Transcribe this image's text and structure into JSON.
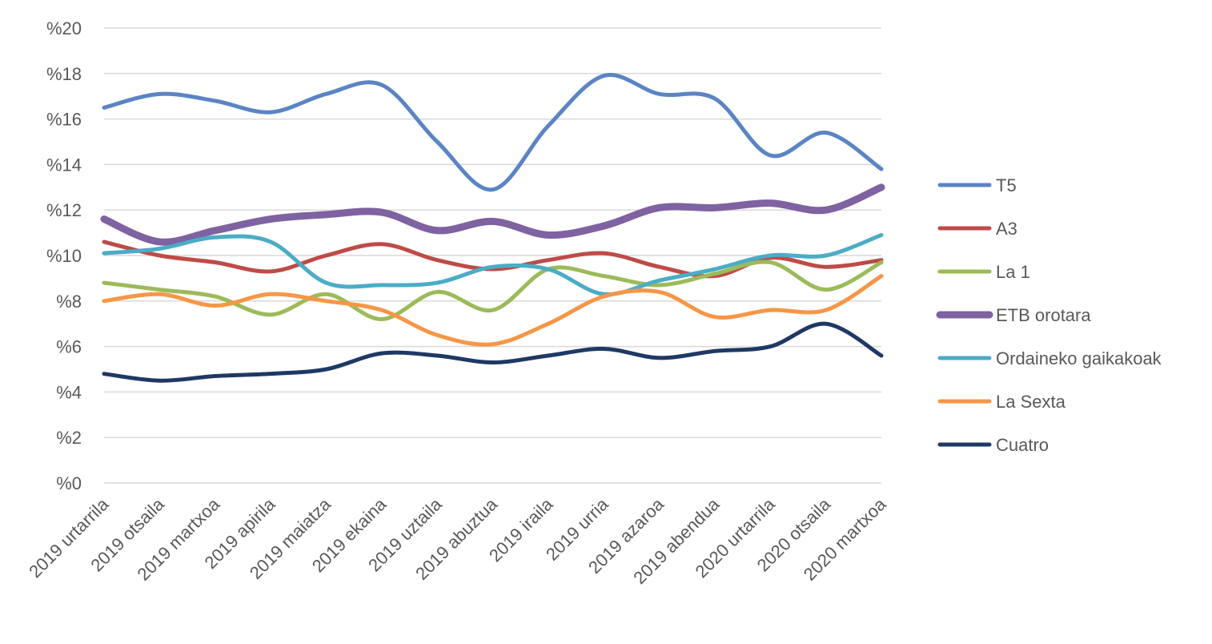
{
  "chart_data": {
    "type": "line",
    "title": "",
    "xlabel": "",
    "ylabel": "",
    "ylim": [
      0,
      20
    ],
    "y_tick_step": 2,
    "y_tick_prefix": "%",
    "grid": true,
    "legend_position": "right",
    "smooth": true,
    "categories": [
      "2019 urtarrila",
      "2019 otsaila",
      "2019 martxoa",
      "2019 apirila",
      "2019 maiatza",
      "2019 ekaina",
      "2019 uztaila",
      "2019 abuztua",
      "2019 iraila",
      "2019 urria",
      "2019 azaroa",
      "2019 abendua",
      "2020 urtarrila",
      "2020 otsaila",
      "2020 martxoa"
    ],
    "series": [
      {
        "name": "T5",
        "color": "#5B84C4",
        "width": 5,
        "values": [
          16.5,
          17.1,
          16.8,
          16.3,
          17.1,
          17.5,
          15.0,
          12.9,
          15.7,
          17.9,
          17.1,
          16.9,
          14.4,
          15.4,
          13.8
        ]
      },
      {
        "name": "A3",
        "color": "#BE4B48",
        "width": 5,
        "values": [
          10.6,
          10.0,
          9.7,
          9.3,
          10.0,
          10.5,
          9.8,
          9.4,
          9.8,
          10.1,
          9.5,
          9.1,
          9.9,
          9.5,
          9.8
        ]
      },
      {
        "name": "La 1",
        "color": "#9BBB59",
        "width": 5,
        "values": [
          8.8,
          8.5,
          8.2,
          7.4,
          8.3,
          7.2,
          8.4,
          7.6,
          9.4,
          9.1,
          8.7,
          9.2,
          9.7,
          8.5,
          9.7
        ]
      },
      {
        "name": "ETB orotara",
        "color": "#7F62A1",
        "width": 9,
        "values": [
          11.6,
          10.6,
          11.1,
          11.6,
          11.8,
          11.9,
          11.1,
          11.5,
          10.9,
          11.3,
          12.1,
          12.1,
          12.3,
          12.0,
          13.0
        ]
      },
      {
        "name": "Ordaineko gaikakoak",
        "color": "#4BACC6",
        "width": 5,
        "values": [
          10.1,
          10.3,
          10.8,
          10.6,
          8.8,
          8.7,
          8.8,
          9.5,
          9.4,
          8.3,
          8.9,
          9.4,
          10.0,
          10.0,
          10.9
        ]
      },
      {
        "name": "La Sexta",
        "color": "#F79646",
        "width": 5,
        "values": [
          8.0,
          8.3,
          7.8,
          8.3,
          8.0,
          7.6,
          6.5,
          6.1,
          7.0,
          8.2,
          8.4,
          7.3,
          7.6,
          7.6,
          9.1
        ]
      },
      {
        "name": "Cuatro",
        "color": "#1F3864",
        "width": 5,
        "values": [
          4.8,
          4.5,
          4.7,
          4.8,
          5.0,
          5.7,
          5.6,
          5.3,
          5.6,
          5.9,
          5.5,
          5.8,
          6.0,
          7.0,
          5.6
        ]
      }
    ]
  }
}
